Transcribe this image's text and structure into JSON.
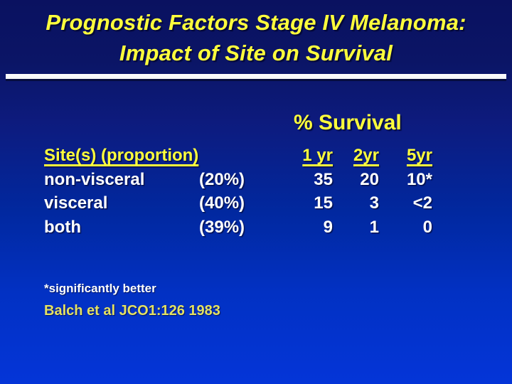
{
  "title": {
    "line1": "Prognostic Factors Stage IV Melanoma:",
    "line2": "Impact of Site on Survival"
  },
  "survival_heading": "% Survival",
  "table": {
    "site_header": "Site(s) (proportion)",
    "columns": [
      "1 yr",
      "2yr",
      "5yr"
    ],
    "rows": [
      {
        "site": "non-visceral",
        "proportion": "(20%)",
        "yr1": "35",
        "yr2": "20",
        "yr5": "10*"
      },
      {
        "site": "visceral",
        "proportion": "(40%)",
        "yr1": "15",
        "yr2": "3",
        "yr5": "<2"
      },
      {
        "site": "both",
        "proportion": "(39%)",
        "yr1": "9",
        "yr2": "1",
        "yr5": "0"
      }
    ]
  },
  "footnote": "*significantly better",
  "citation": "Balch et al JCO1:126 1983",
  "colors": {
    "heading_yellow": "#ffff3c",
    "citation_yellow": "#e4e162",
    "body_white": "#ffffff",
    "background_top": "#0a1160",
    "background_bottom": "#0435d8",
    "divider_white": "#ffffff"
  }
}
